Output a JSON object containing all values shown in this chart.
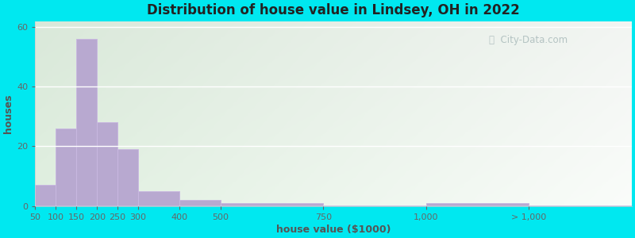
{
  "title": "Distribution of house value in Lindsey, OH in 2022",
  "xlabel": "house value ($1000)",
  "ylabel": "houses",
  "bar_color": "#b8a9d0",
  "bar_edgecolor": "#c8b8e0",
  "ylim": [
    0,
    62
  ],
  "yticks": [
    0,
    20,
    40,
    60
  ],
  "background_outer": "#00e8f0",
  "watermark": "City-Data.com",
  "bin_edges": [
    50,
    100,
    150,
    200,
    250,
    300,
    400,
    500,
    750,
    1000,
    1250,
    1500
  ],
  "bin_heights": [
    7,
    26,
    56,
    28,
    19,
    5,
    2,
    1,
    0.3,
    1,
    0.3,
    0
  ],
  "xtick_labels": [
    "50",
    "100",
    "150",
    "200",
    "250",
    "300",
    "400",
    "500",
    "750",
    "1,000",
    "> 1,000"
  ],
  "xtick_positions": [
    50,
    100,
    150,
    200,
    250,
    300,
    400,
    500,
    750,
    1000,
    1250
  ],
  "xlim": [
    50,
    1500
  ]
}
